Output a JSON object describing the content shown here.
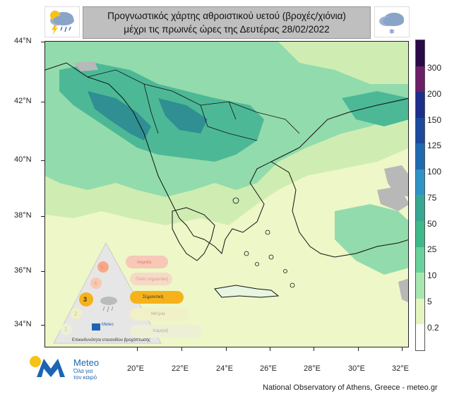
{
  "header": {
    "line1": "Προγνωστικός χάρτης αθροιστικού υετού (βροχές/χιόνια)",
    "line2": "μέχρι τις πρωινές ώρες της Δευτέρας 28/02/2022"
  },
  "icons": {
    "left": "storm-rain-cloud-icon",
    "right": "snow-cloud-icon"
  },
  "latitudes": [
    "44°N",
    "42°N",
    "40°N",
    "38°N",
    "36°N",
    "34°N"
  ],
  "longitudes": [
    "20°E",
    "22°E",
    "24°E",
    "26°E",
    "28°E",
    "30°E",
    "32°E"
  ],
  "colorbar": {
    "labels": [
      "300",
      "200",
      "150",
      "125",
      "100",
      "75",
      "50",
      "25",
      "10",
      "5",
      "0.2"
    ],
    "colors": [
      "#2b0a4a",
      "#6a1f66",
      "#1d2f8a",
      "#1c4a9c",
      "#1f6bb0",
      "#2f93c6",
      "#36a892",
      "#3fb88a",
      "#6ad09c",
      "#a8e6b0",
      "#e4f5bf",
      "#ffffff"
    ]
  },
  "colors": {
    "sea": "#eef7c7",
    "land_light": "#cfedb2",
    "land_mid": "#92dbac",
    "land_heavy": "#4cb896",
    "land_max": "#2f8f92",
    "no_data": "#b8b8b8"
  },
  "legend": {
    "levels": [
      "5",
      "4",
      "3",
      "2",
      "1"
    ],
    "labels": [
      "Ακραία",
      "Πολύ σημαντική",
      "Σημαντική",
      "Μέτρια",
      "Χαμηλή"
    ],
    "caption": "Επικινδυνότητα επεισοδίου βροχόπτωσης",
    "brand": "Meteo"
  },
  "footer": {
    "brand": "Meteo",
    "slogan": "Όλα για τον καιρό",
    "credit": "National Observatory of Athens, Greece - meteo.gr"
  }
}
